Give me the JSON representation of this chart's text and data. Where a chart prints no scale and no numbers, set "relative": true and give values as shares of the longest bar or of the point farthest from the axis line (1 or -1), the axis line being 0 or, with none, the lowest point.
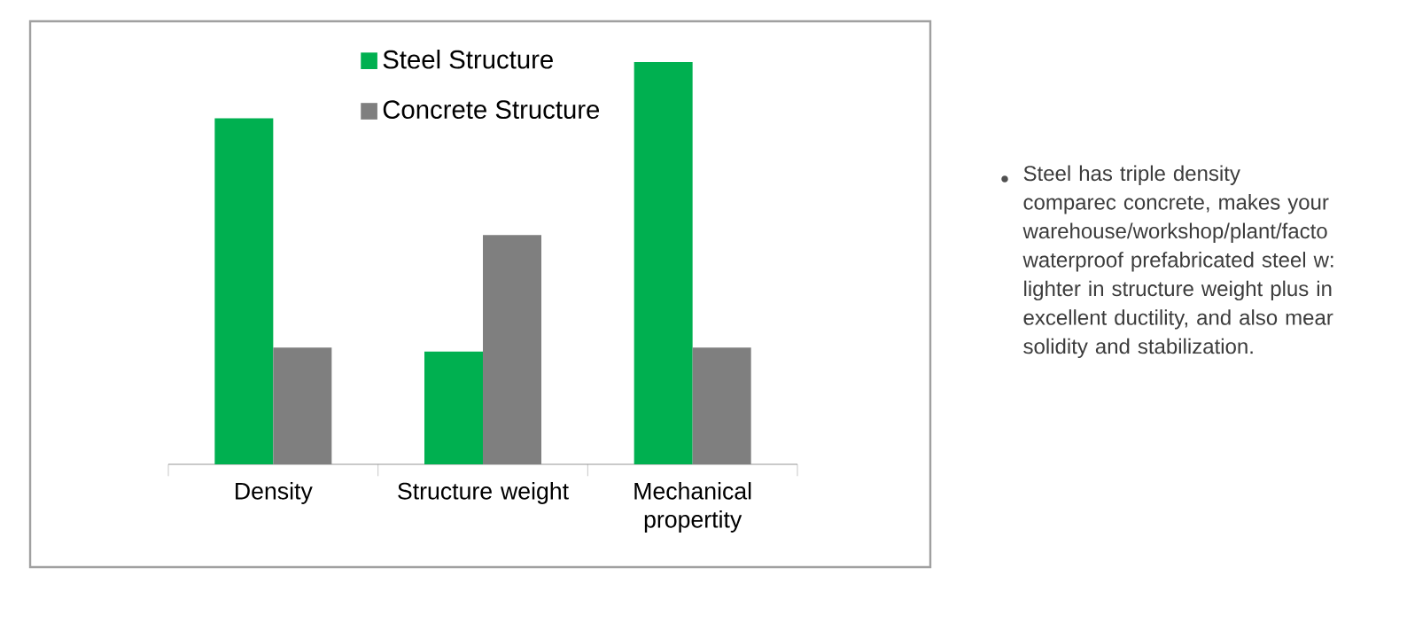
{
  "chart_data": {
    "type": "bar",
    "relative": true,
    "categories": [
      "Density",
      "Structure weight",
      "Mechanical propertity"
    ],
    "series": [
      {
        "name": "Steel Structure",
        "color": "#00b050",
        "values": [
          0.86,
          0.28,
          1
        ]
      },
      {
        "name": "Concrete Structure",
        "color": "#7f7f7f",
        "values": [
          0.29,
          0.57,
          0.29
        ]
      }
    ],
    "legend": "top",
    "annotations": [
      "Steel has triple density comparec concrete, makes your warehouse/workshop/plant/facto waterproof prefabricated steel w: lighter in structure weight plus in excellent ductility, and also mear solidity and stabilization."
    ]
  }
}
